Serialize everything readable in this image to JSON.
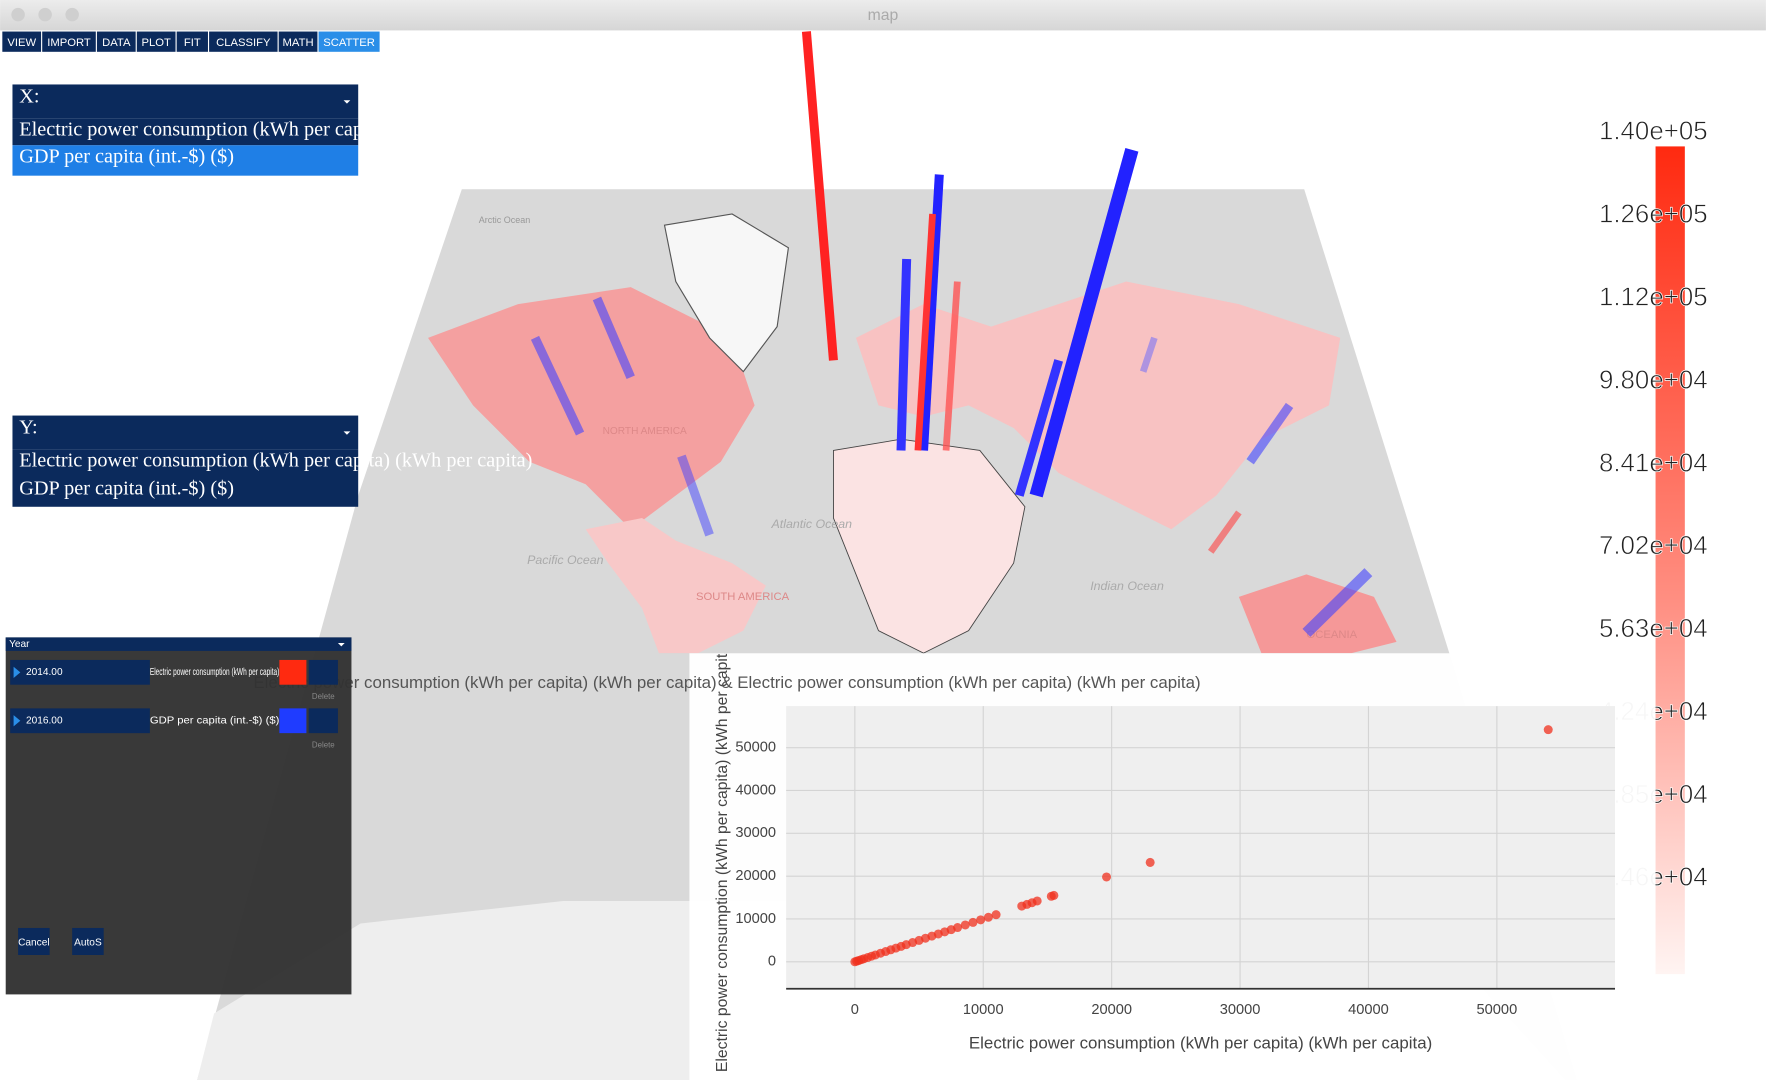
{
  "window": {
    "title": "map"
  },
  "menu": [
    "VIEW",
    "IMPORT",
    "DATA",
    "PLOT",
    "FIT",
    "CLASSIFY",
    "MATH",
    "SCATTER"
  ],
  "x_selector": {
    "label": "X:",
    "options": [
      "Electric power consumption (kWh per capita) (kWh per capita)",
      "GDP per capita (int.-$) ($)"
    ]
  },
  "y_selector": {
    "label": "Y:",
    "options": [
      "Electric power consumption (kWh per capita) (kWh per capita)",
      "GDP per capita (int.-$) ($)"
    ]
  },
  "map_labels": [
    "Arctic Ocean",
    "NORTH AMERICA",
    "Atlantic Ocean",
    "Pacific Ocean",
    "SOUTH AMERICA",
    "Indian Ocean",
    "OCEANIA"
  ],
  "colorbar": {
    "labels": [
      "1.40e+05",
      "1.26e+05",
      "1.12e+05",
      "9.80e+04",
      "8.41e+04",
      "7.02e+04",
      "5.63e+04",
      "4.24e+04",
      "2.85e+04",
      "1.46e+04"
    ]
  },
  "year_panel": {
    "title": "Year",
    "rows": [
      {
        "year": "2014.00",
        "variable": "Electric power consumption (kWh per capita)",
        "action": "Delete"
      },
      {
        "year": "2016.00",
        "variable": "GDP per capita (int.-$) ($)",
        "action": "Delete"
      }
    ],
    "buttons": [
      "Cancel",
      "AutoS"
    ]
  },
  "chart_data": {
    "type": "scatter",
    "title": "Electric power consumption (kWh per capita) (kWh per capita) & Electric power consumption (kWh per capita) (kWh per capita)",
    "x_label": "Electric power consumption (kWh per capita) (kWh per capita)",
    "y_label": "Electric power consumption (kWh per capita) (kWh per capita)",
    "color": "#f0301e",
    "x": [
      0,
      150,
      300,
      500,
      700,
      1000,
      1300,
      1600,
      2000,
      2400,
      2800,
      3200,
      3600,
      4000,
      4500,
      5000,
      5500,
      6000,
      6500,
      7000,
      7500,
      8000,
      8600,
      9200,
      9800,
      10400,
      11000,
      13000,
      13400,
      13800,
      14200,
      15300,
      15500,
      19600,
      23000,
      54000
    ],
    "y": [
      0,
      150,
      300,
      500,
      700,
      1000,
      1300,
      1600,
      2000,
      2400,
      2800,
      3200,
      3600,
      4000,
      4500,
      5000,
      5500,
      6000,
      6500,
      7000,
      7500,
      8000,
      8600,
      9200,
      9800,
      10400,
      11000,
      13000,
      13400,
      13800,
      14200,
      15300,
      15500,
      19800,
      23200,
      54200
    ],
    "xlim": [
      -5350,
      59200
    ],
    "ylim": [
      -6300,
      59700
    ],
    "xticks": [
      0,
      10000,
      20000,
      30000,
      40000,
      50000
    ],
    "yticks": [
      0,
      10000,
      20000,
      30000,
      40000,
      50000
    ],
    "grid": true
  }
}
